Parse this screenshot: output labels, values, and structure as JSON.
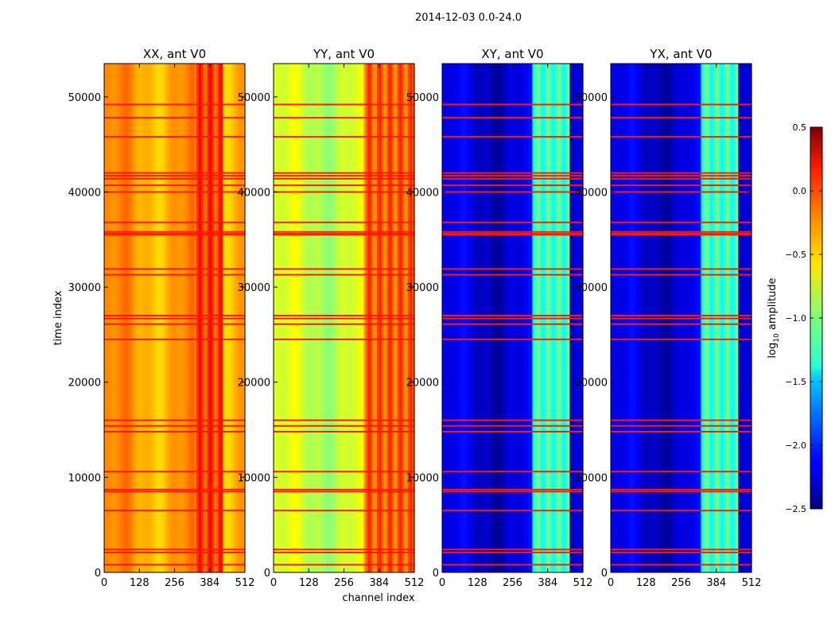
{
  "chart_data": {
    "type": "heatmap",
    "suptitle": "2014-12-03 0.0-24.0",
    "xlabel": "channel index",
    "ylabel": "time index",
    "xlim": [
      0,
      512
    ],
    "ylim": [
      0,
      53500
    ],
    "x_ticks": [
      0,
      128,
      256,
      384,
      512
    ],
    "y_ticks": [
      0,
      10000,
      20000,
      30000,
      40000,
      50000
    ],
    "panels": [
      {
        "title": "XX, ant V0",
        "base_value": -0.35,
        "band_value": -0.05,
        "band_range": [
          325,
          430
        ]
      },
      {
        "title": "YY, ant V0",
        "base_value": -0.8,
        "band_value": -0.15,
        "band_range": [
          325,
          512
        ]
      },
      {
        "title": "XY, ant V0",
        "base_value": -2.25,
        "band_value": -1.2,
        "band_range": [
          325,
          465
        ]
      },
      {
        "title": "YX, ant V0",
        "base_value": -2.25,
        "band_value": -1.2,
        "band_range": [
          325,
          465
        ]
      }
    ],
    "flagged_rows": [
      800,
      2100,
      2400,
      6500,
      8500,
      8700,
      10600,
      14800,
      15400,
      16000,
      24500,
      26100,
      26700,
      27000,
      31300,
      31900,
      35500,
      35600,
      35800,
      36800,
      40000,
      40700,
      41400,
      41700,
      42000,
      45800,
      47800,
      49200
    ],
    "colorbar": {
      "label": "log10 amplitude",
      "label_main": "log",
      "label_sub": "10",
      "label_tail": " amplitude",
      "vmin": -2.5,
      "vmax": 0.5,
      "ticks": [
        0.5,
        0.0,
        -0.5,
        -1.0,
        -1.5,
        -2.0,
        -2.5
      ],
      "tick_labels": [
        "0.5",
        "0.0",
        "−0.5",
        "−1.0",
        "−1.5",
        "−2.0",
        "−2.5"
      ],
      "colormap": "jet"
    }
  }
}
